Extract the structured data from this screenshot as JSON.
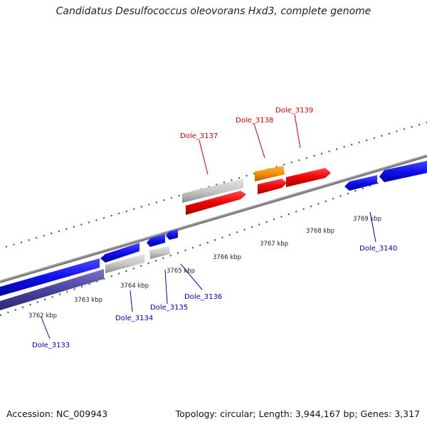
{
  "title": "Candidatus Desulfococcus oleovorans Hxd3, complete genome",
  "footer": {
    "accession": "Accession: NC_009943",
    "summary": "Topology: circular; Length: 3,944,167 bp; Genes: 3,317"
  },
  "colors": {
    "forward_label": "#dd0000",
    "reverse_label": "#0000cc",
    "backbone": "#888888",
    "ticks": "#1a7a1a"
  },
  "scale_labels": [
    "3762 kbp",
    "3763 kbp",
    "3764 kbp",
    "3765 kbp",
    "3766 kbp",
    "3767 kbp",
    "3768 kbp",
    "3769 kbp"
  ],
  "genes": [
    {
      "name": "Dole_3133",
      "strand": "reverse"
    },
    {
      "name": "Dole_3134",
      "strand": "reverse"
    },
    {
      "name": "Dole_3135",
      "strand": "reverse"
    },
    {
      "name": "Dole_3136",
      "strand": "reverse"
    },
    {
      "name": "Dole_3137",
      "strand": "forward"
    },
    {
      "name": "Dole_3138",
      "strand": "forward"
    },
    {
      "name": "Dole_3139",
      "strand": "forward"
    },
    {
      "name": "Dole_3140",
      "strand": "reverse"
    }
  ]
}
